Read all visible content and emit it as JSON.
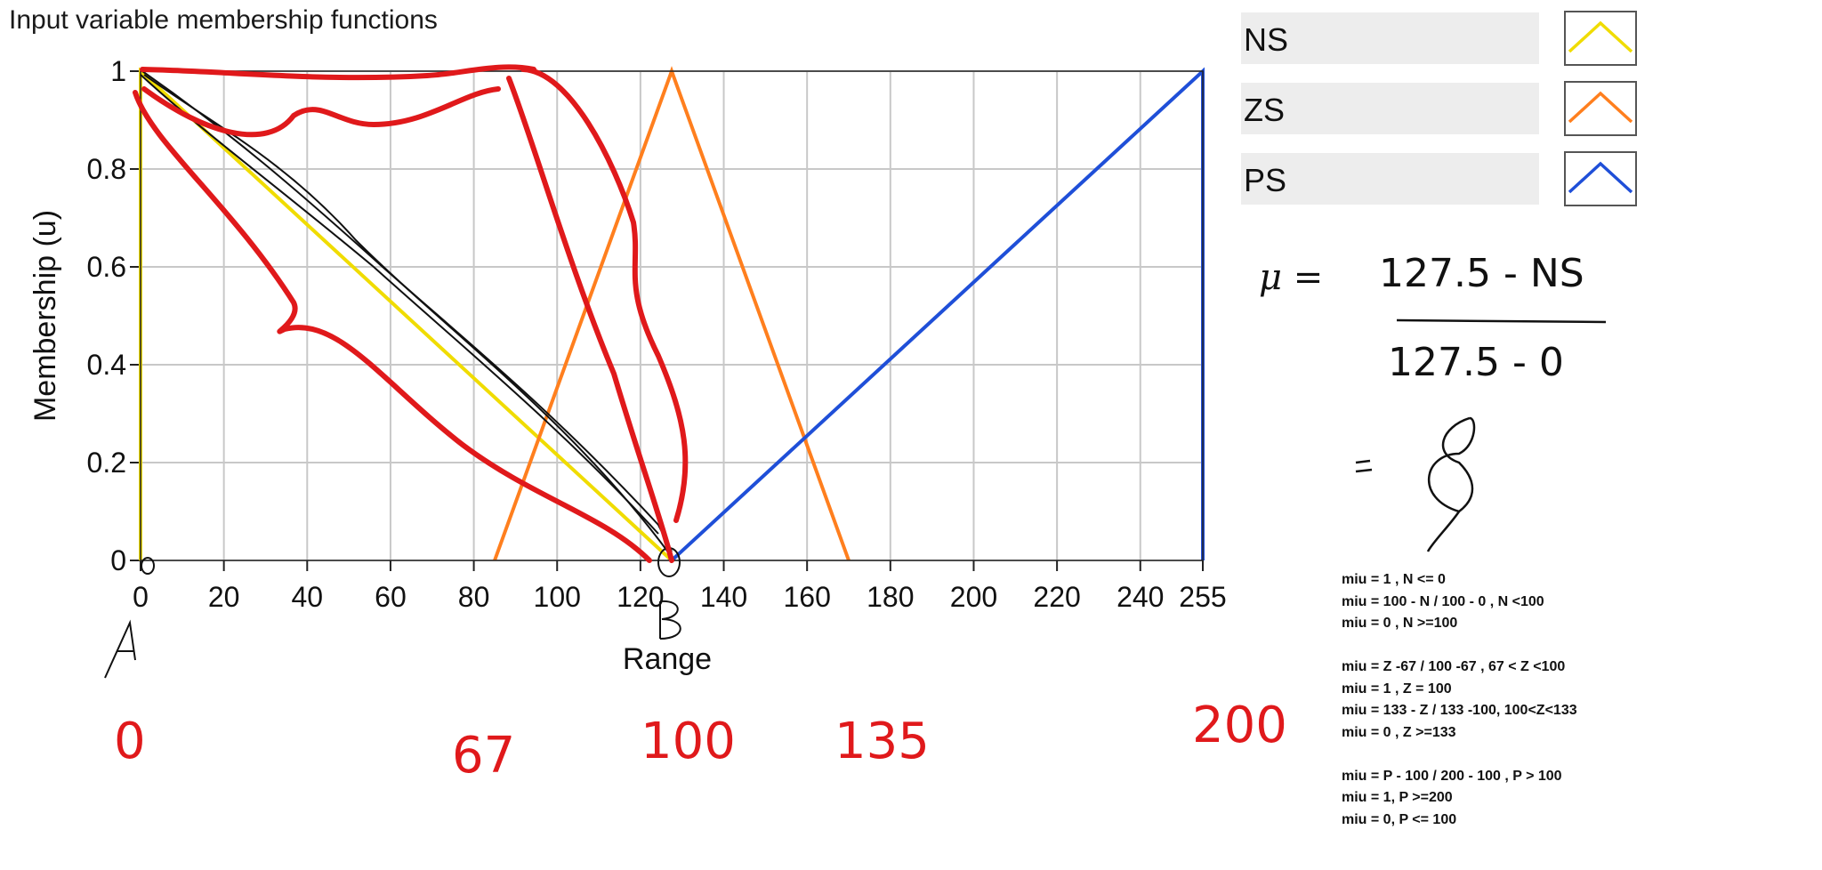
{
  "title": "Input variable membership functions",
  "chart_data": {
    "type": "line",
    "title": "Input variable membership functions",
    "xlabel": "Range",
    "ylabel": "Membership (u)",
    "xlim": [
      0,
      255
    ],
    "ylim": [
      0,
      1
    ],
    "x_ticks": [
      "0",
      "20",
      "40",
      "60",
      "80",
      "100",
      "120",
      "140",
      "160",
      "180",
      "200",
      "220",
      "240",
      "255"
    ],
    "x_tick_values": [
      0,
      20,
      40,
      60,
      80,
      100,
      120,
      140,
      160,
      180,
      200,
      220,
      240,
      255
    ],
    "y_ticks": [
      "0",
      "0.2",
      "0.4",
      "0.6",
      "0.8",
      "1"
    ],
    "y_tick_values": [
      0,
      0.2,
      0.4,
      0.6,
      0.8,
      1
    ],
    "grid": true,
    "legend_position": "right",
    "series": [
      {
        "name": "NS",
        "color": "#f0dc00",
        "x": [
          0,
          0,
          127.5
        ],
        "y": [
          0,
          1,
          0
        ]
      },
      {
        "name": "ZS",
        "color": "#ff7f1e",
        "x": [
          85,
          127.5,
          170
        ],
        "y": [
          0,
          1,
          0
        ]
      },
      {
        "name": "PS",
        "color": "#1f4fd8",
        "x": [
          127.5,
          255,
          255
        ],
        "y": [
          0,
          1,
          0
        ]
      }
    ]
  },
  "annotations": {
    "handwritten_formula": {
      "numerator": "127.5 - NS",
      "denominator": "127.5 - 0",
      "symbol": "μ ="
    },
    "red_numbers": [
      "0",
      "67",
      "100",
      "135",
      "200"
    ],
    "letters": [
      "A",
      "B"
    ]
  },
  "notes": [
    "miu = 1 , N <= 0",
    "miu = 100 - N / 100 - 0 , N <100",
    "miu = 0 , N >=100",
    "",
    "miu = Z -67 / 100 -67 , 67 < Z <100",
    "miu = 1 , Z = 100",
    "miu = 133 - Z / 133 -100, 100<Z<133",
    "miu = 0 , Z >=133",
    "",
    "miu = P - 100 / 200 - 100 , P > 100",
    "miu = 1, P >=200",
    "miu = 0, P <= 100"
  ]
}
